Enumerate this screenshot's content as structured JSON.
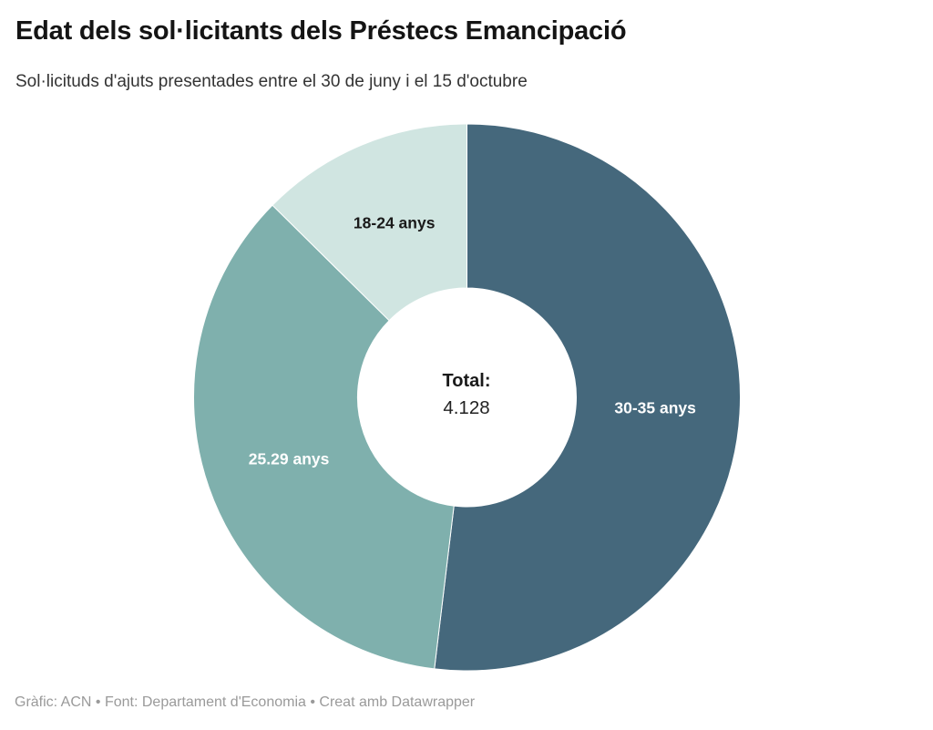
{
  "chart_data": {
    "type": "pie",
    "subtype": "donut",
    "title": "Edat dels sol·licitants dels Préstecs Emancipació",
    "subtitle": "Sol·licituds d'ajuts presentades entre el 30 de juny i el 15 d'octubre",
    "center_label": "Total:",
    "center_value": "4.128",
    "total_numeric": 4128,
    "start_angle_deg": 0,
    "legend": "none (labels placed on slices)",
    "segments": [
      {
        "label": "30-35 anys",
        "share_pct": 51.9,
        "color": "#45687c",
        "label_color": "#ffffff"
      },
      {
        "label": "25.29 anys",
        "share_pct": 35.5,
        "color": "#7fb0ad",
        "label_color": "#ffffff"
      },
      {
        "label": "18-24 anys",
        "share_pct": 12.6,
        "color": "#d0e5e1",
        "label_color": "#1a1a1a"
      }
    ]
  },
  "footer": {
    "text": "Gràfic: ACN • Font: Departament d'Economia • Creat amb Datawrapper"
  }
}
